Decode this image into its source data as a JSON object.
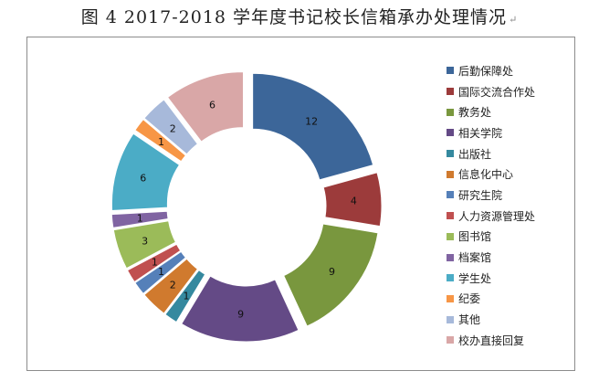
{
  "title": "图 4  2017-2018 学年度书记校长信箱承办处理情况",
  "title_mark": "↵",
  "chart_data": {
    "type": "pie",
    "variant": "doughnut-exploded",
    "categories": [
      "后勤保障处",
      "国际交流合作处",
      "教务处",
      "相关学院",
      "出版社",
      "信息化中心",
      "研究生院",
      "人力资源管理处",
      "图书馆",
      "档案馆",
      "学生处",
      "纪委",
      "其他",
      "校办直接回复"
    ],
    "values": [
      12,
      4,
      9,
      9,
      1,
      2,
      1,
      1,
      3,
      1,
      6,
      1,
      2,
      6
    ],
    "colors": [
      "#3C6699",
      "#9C3B3B",
      "#79973E",
      "#644A86",
      "#35899F",
      "#D07A2E",
      "#5580B9",
      "#C05050",
      "#9BBB59",
      "#8064A2",
      "#4BACC6",
      "#F79646",
      "#A7B9DA",
      "#D9A7A7"
    ],
    "legend_position": "right",
    "title": "图 4  2017-2018 学年度书记校长信箱承办处理情况"
  }
}
